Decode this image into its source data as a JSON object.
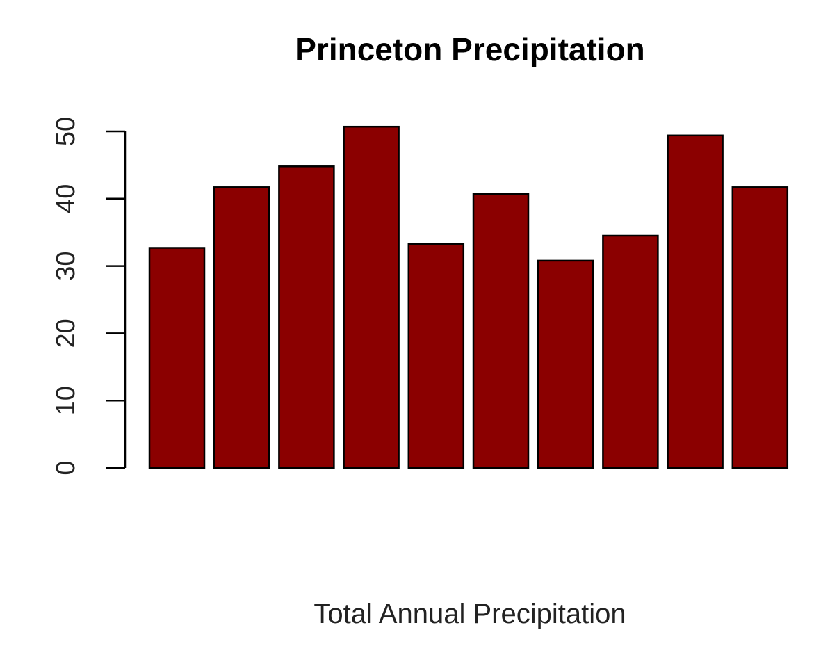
{
  "chart_data": {
    "type": "bar",
    "title": "Princeton Precipitation",
    "xlabel": "Total Annual Precipitation",
    "ylabel": "",
    "ylim": [
      0,
      50
    ],
    "yticks": [
      "0",
      "10",
      "20",
      "30",
      "40",
      "50"
    ],
    "values": [
      32.7,
      41.7,
      44.8,
      50.7,
      33.3,
      40.7,
      30.8,
      34.5,
      49.4,
      41.7
    ],
    "grid": false,
    "legend": "none",
    "bar_color": "#8B0000",
    "bar_stroke": "#000000"
  }
}
